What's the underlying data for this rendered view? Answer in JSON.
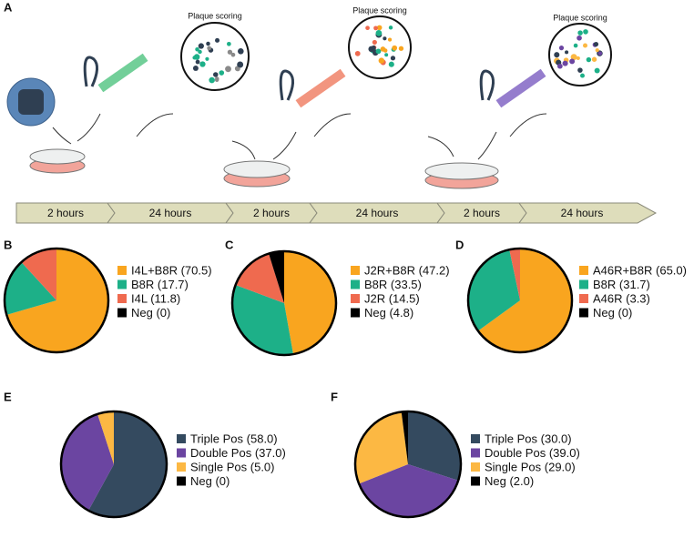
{
  "panel_a": {
    "label": "A",
    "plaque_labels": [
      "Plaque scoring",
      "Plaque scoring",
      "Plaque scoring"
    ],
    "timeline": [
      "2 hours",
      "24 hours",
      "2 hours",
      "24 hours",
      "2 hours",
      "24 hours"
    ]
  },
  "chart_data": [
    {
      "type": "pie",
      "label": "B",
      "categories": [
        "I4L+B8R (70.5)",
        "B8R (17.7)",
        "I4L (11.8)",
        "Neg (0)"
      ],
      "values": [
        70.5,
        17.7,
        11.8,
        0
      ],
      "colors": [
        "#f9a51f",
        "#1db088",
        "#ef6a4f",
        "#000000"
      ]
    },
    {
      "type": "pie",
      "label": "C",
      "categories": [
        "J2R+B8R (47.2)",
        "B8R (33.5)",
        "J2R (14.5)",
        "Neg (4.8)"
      ],
      "values": [
        47.2,
        33.5,
        14.5,
        4.8
      ],
      "colors": [
        "#f9a51f",
        "#1db088",
        "#ef6a4f",
        "#000000"
      ]
    },
    {
      "type": "pie",
      "label": "D",
      "categories": [
        "A46R+B8R (65.0)",
        "B8R (31.7)",
        "A46R (3.3)",
        "Neg (0)"
      ],
      "values": [
        65.0,
        31.7,
        3.3,
        0
      ],
      "colors": [
        "#f9a51f",
        "#1db088",
        "#ef6a4f",
        "#000000"
      ]
    },
    {
      "type": "pie",
      "label": "E",
      "categories": [
        "Triple Pos (58.0)",
        "Double Pos (37.0)",
        "Single Pos (5.0)",
        "Neg (0)"
      ],
      "values": [
        58.0,
        37.0,
        5.0,
        0
      ],
      "colors": [
        "#344a5f",
        "#6b45a1",
        "#fcb843",
        "#000000"
      ]
    },
    {
      "type": "pie",
      "label": "F",
      "categories": [
        "Triple Pos (30.0)",
        "Double Pos (39.0)",
        "Single Pos (29.0)",
        "Neg (2.0)"
      ],
      "values": [
        30.0,
        39.0,
        29.0,
        2.0
      ],
      "colors": [
        "#344a5f",
        "#6b45a1",
        "#fcb843",
        "#000000"
      ]
    }
  ]
}
